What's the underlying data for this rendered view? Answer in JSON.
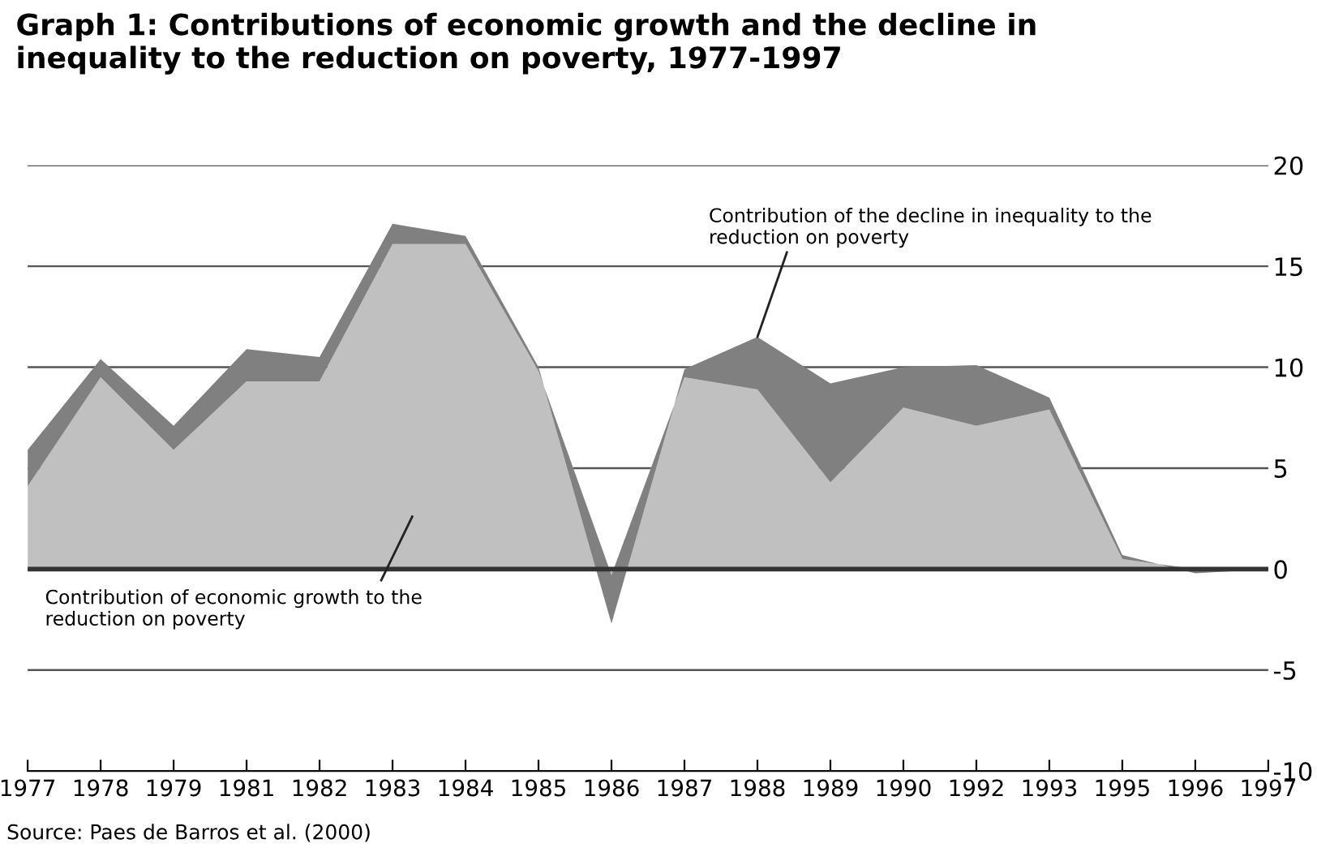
{
  "chart_data": {
    "type": "area",
    "stacked": true,
    "title": "Graph 1: Contributions of economic growth and the decline in\ninequality to the reduction on poverty, 1977-1997",
    "categories": [
      "1977",
      "1978",
      "1979",
      "1981",
      "1982",
      "1983",
      "1984",
      "1985",
      "1986",
      "1987",
      "1988",
      "1989",
      "1990",
      "1992",
      "1993",
      "1995",
      "1996",
      "1997"
    ],
    "series": [
      {
        "color": "#c0c0c0",
        "values": [
          4.1,
          9.5,
          5.9,
          9.3,
          9.3,
          16.1,
          16.1,
          9.8,
          -0.3,
          9.5,
          8.9,
          4.3,
          8.0,
          7.1,
          7.9,
          0.5,
          0.0,
          0.0
        ]
      },
      {
        "color": "#808080",
        "values": [
          1.8,
          0.9,
          1.2,
          1.6,
          1.2,
          1.0,
          0.4,
          0.2,
          -2.4,
          0.4,
          2.6,
          4.9,
          2.0,
          3.0,
          0.6,
          0.2,
          -0.2,
          0.0
        ]
      }
    ],
    "ylim": [
      -10,
      20
    ],
    "yticks": [
      -10,
      -5,
      0,
      5,
      10,
      15,
      20
    ],
    "grid": "y",
    "annotations": [
      "Contribution of economic growth to the\nreduction on poverty",
      {
        "text": "Contribution of the decline in inequality to the\nreduction on poverty",
        "x": "1988",
        "y": 11.5
      },
      "Source: Paes de Barros et al. (2000)"
    ]
  }
}
